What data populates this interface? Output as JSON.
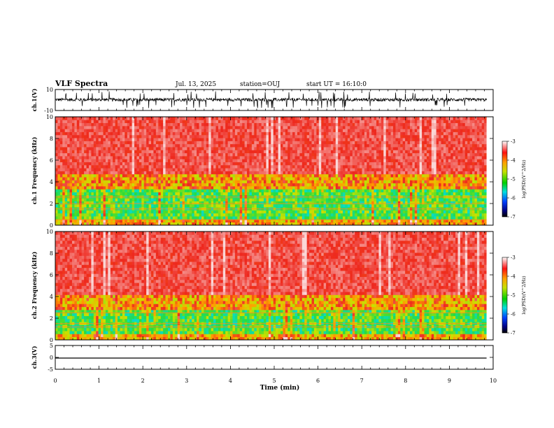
{
  "header": {
    "title": "VLF Spectra",
    "date": "Jul. 13, 2025",
    "station": "station=OUJ",
    "start": "start UT = 16:10:0"
  },
  "colors": {
    "spectrogram_low": "#0a0a8c",
    "spectrogram_mid": "#20e060",
    "spectrogram_high": "#ee2a1e",
    "trace": "#000000"
  },
  "chart_data": [
    {
      "type": "line",
      "name": "ch1-waveform",
      "ylabel": "ch.1(V)",
      "ylim": [
        -10,
        10
      ],
      "yticks": [
        "10",
        "-10"
      ],
      "xlim": [
        0,
        10
      ],
      "baseline": 0.3,
      "noise_amplitude": 1.5,
      "spike_amplitude": 8
    },
    {
      "type": "heatmap",
      "name": "ch1-spectrogram",
      "ylabel": "ch.1 Frequency (kHz)",
      "ylim": [
        0,
        10
      ],
      "yticks": [
        "0",
        "2",
        "4",
        "6",
        "8",
        "10"
      ],
      "xlim": [
        0,
        9.85
      ],
      "zlim": [
        -7,
        -3
      ],
      "zlabel": "log(PSD)(V^2/Hz)",
      "cbar_ticks": [
        "-3",
        "-4",
        "-5",
        "-6",
        "-7"
      ],
      "noise_floor_khz": 4.0,
      "lines_khz": [
        0.5,
        1.5,
        2.0,
        2.6
      ]
    },
    {
      "type": "heatmap",
      "name": "ch2-spectrogram",
      "ylabel": "ch.2 Frequency (kHz)",
      "ylim": [
        0,
        10
      ],
      "yticks": [
        "0",
        "2",
        "4",
        "6",
        "8",
        "10"
      ],
      "xlim": [
        0,
        9.85
      ],
      "zlim": [
        -7,
        -3
      ],
      "zlabel": "log(PSD)(V^2/Hz)",
      "cbar_ticks": [
        "-3",
        "-4",
        "-5",
        "-6",
        "-7"
      ],
      "noise_floor_khz": 3.5,
      "lines_khz": [
        1.2,
        1.5,
        2.5
      ]
    },
    {
      "type": "line",
      "name": "ch3-waveform",
      "ylabel": "ch.3(V)",
      "ylim": [
        -5,
        5
      ],
      "yticks": [
        "5",
        "0",
        "-5"
      ],
      "xlim": [
        0,
        10
      ],
      "x": [
        0,
        9.85
      ],
      "y": [
        -0.3,
        -0.3
      ]
    }
  ],
  "xaxis": {
    "label": "Time (min)",
    "ticks": [
      "0",
      "1",
      "2",
      "3",
      "4",
      "5",
      "6",
      "7",
      "8",
      "9",
      "10"
    ]
  }
}
